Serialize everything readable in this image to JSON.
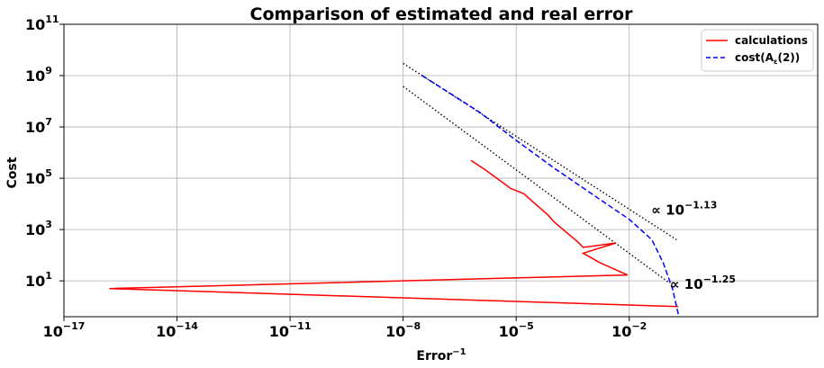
{
  "chart_data": {
    "type": "line",
    "title": "Comparison of estimated and real error",
    "xlabel": "Error",
    "xlabel_sup": "−1",
    "ylabel": "Cost",
    "xscale": "log",
    "yscale": "log",
    "xlim": [
      1e-17,
      1000
    ],
    "ylim": [
      0.4,
      100000000000
    ],
    "grid": true,
    "legend_position": "top-right",
    "x_ticks": [
      {
        "value": 1e-17,
        "base": "10",
        "exp": "−17"
      },
      {
        "value": 1e-14,
        "base": "10",
        "exp": "−14"
      },
      {
        "value": 1e-11,
        "base": "10",
        "exp": "−11"
      },
      {
        "value": 1e-08,
        "base": "10",
        "exp": "−8"
      },
      {
        "value": 1e-05,
        "base": "10",
        "exp": "−5"
      },
      {
        "value": 0.01,
        "base": "10",
        "exp": "−2"
      }
    ],
    "y_ticks": [
      {
        "value": 10,
        "base": "10",
        "exp": "1"
      },
      {
        "value": 1000,
        "base": "10",
        "exp": "3"
      },
      {
        "value": 100000,
        "base": "10",
        "exp": "5"
      },
      {
        "value": 10000000,
        "base": "10",
        "exp": "7"
      },
      {
        "value": 1000000000,
        "base": "10",
        "exp": "9"
      },
      {
        "value": 100000000000,
        "base": "10",
        "exp": "11"
      }
    ],
    "series": [
      {
        "name": "calculations",
        "color": "#ff0000",
        "style": "solid",
        "x": [
          0.2,
          1.6e-16,
          0.009,
          0.0017,
          0.0006,
          0.0045,
          0.0006,
          0.00044,
          0.0001,
          7.1e-05,
          2.6e-05,
          1.6e-05,
          7.1e-06,
          1.6e-06,
          6.3e-07
        ],
        "y": [
          1.0,
          5.0,
          17,
          50,
          120,
          300,
          200,
          320,
          2000,
          3600,
          13000,
          25000,
          40000,
          200000,
          500000
        ]
      },
      {
        "name": "cost(A_ε(2))",
        "legend_text": "cost(A",
        "legend_sub": "ε",
        "legend_tail": "(2))",
        "color": "#0000ff",
        "style": "dashed",
        "x": [
          3.2e-08,
          1e-06,
          1e-05,
          0.0001,
          0.001,
          0.01,
          0.04,
          0.08,
          0.14,
          0.2
        ],
        "y": [
          1000000000,
          40000000,
          3000000,
          250000,
          25000,
          2500,
          400,
          50,
          5,
          0.5
        ]
      }
    ],
    "reference_lines": [
      {
        "label_base": "∝ 10",
        "label_exp": "−1.13",
        "x": [
          1e-08,
          0.18
        ],
        "y": [
          3000000000,
          400
        ]
      },
      {
        "label_base": "∝ 10",
        "label_exp": "−1.25",
        "x": [
          1e-08,
          0.12
        ],
        "y": [
          380000000,
          8
        ]
      }
    ]
  }
}
